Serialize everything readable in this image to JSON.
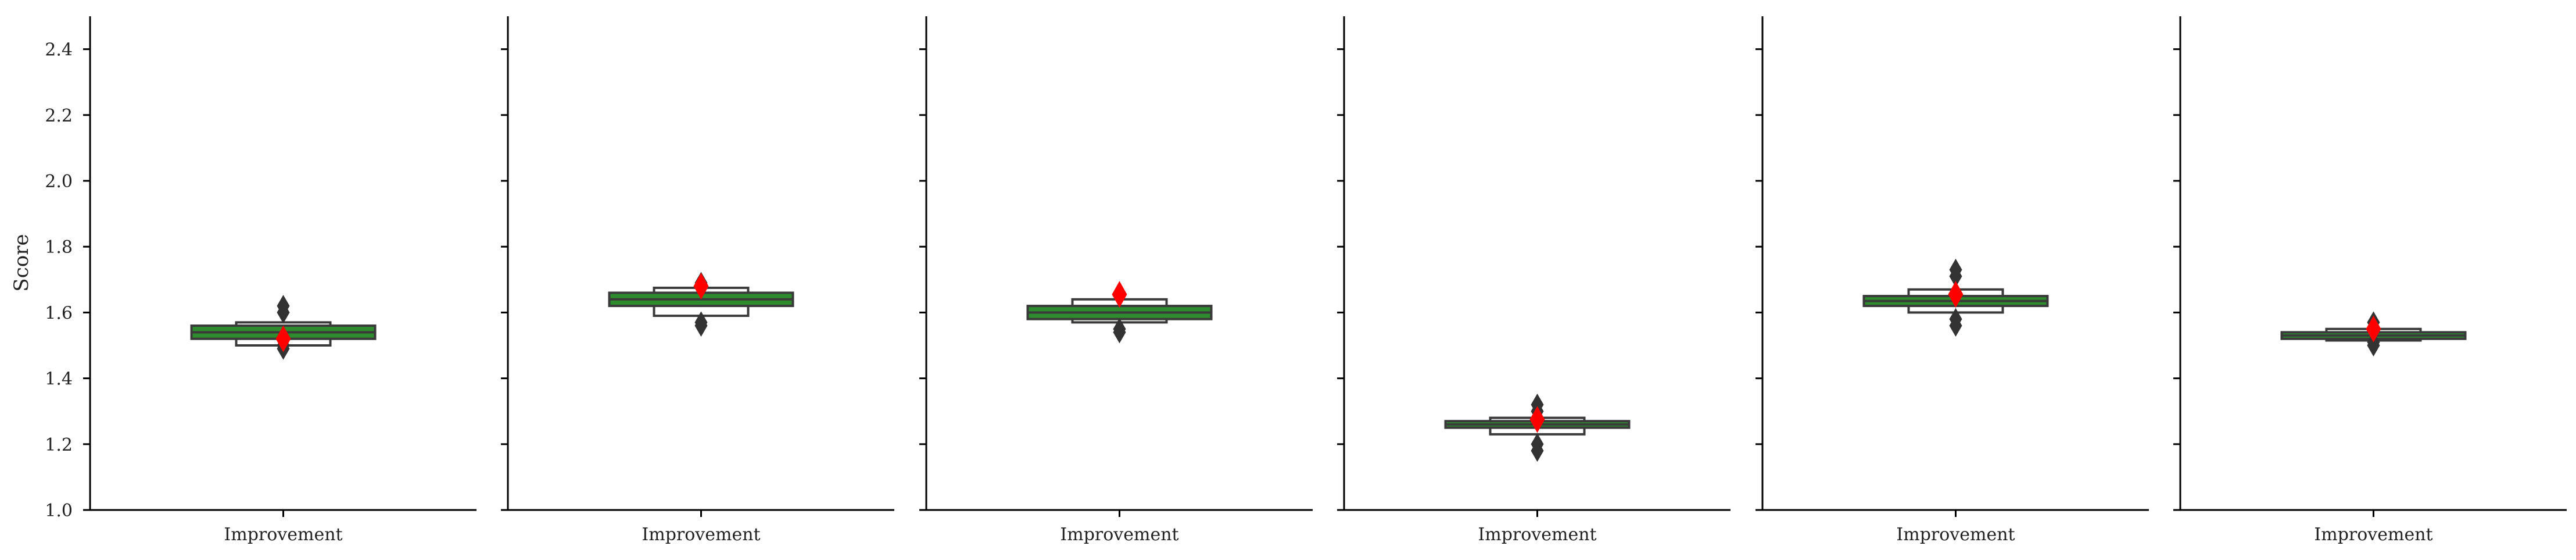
{
  "chart_data": {
    "type": "boxen",
    "ylabel": "Score",
    "ylim": [
      1.0,
      2.5
    ],
    "y_ticks": [
      1.0,
      1.2,
      1.4,
      1.6,
      1.8,
      2.0,
      2.2,
      2.4
    ],
    "y_tick_labels": [
      "1.0",
      "1.2",
      "1.4",
      "1.6",
      "1.8",
      "2.0",
      "2.2",
      "2.4"
    ],
    "grid": false,
    "box_fill_color": "#2e8b2e",
    "outer_box_color": "#ffffff",
    "marker_color": "#ff0000",
    "outlier_color": "#333333",
    "panels": [
      {
        "category": "Improvement",
        "outer_box": [
          1.5,
          1.57
        ],
        "inner_box": [
          1.52,
          1.56
        ],
        "median": 1.54,
        "mean": 1.52,
        "outliers": [
          1.49,
          1.5,
          1.6,
          1.62
        ]
      },
      {
        "category": "Improvement",
        "outer_box": [
          1.59,
          1.675
        ],
        "inner_box": [
          1.62,
          1.66
        ],
        "median": 1.64,
        "mean": 1.68,
        "outliers": [
          1.56,
          1.57,
          1.69
        ]
      },
      {
        "category": "Improvement",
        "outer_box": [
          1.57,
          1.64
        ],
        "inner_box": [
          1.58,
          1.62
        ],
        "median": 1.6,
        "mean": 1.655,
        "outliers": [
          1.54,
          1.55
        ]
      },
      {
        "category": "Improvement",
        "outer_box": [
          1.23,
          1.28
        ],
        "inner_box": [
          1.25,
          1.27
        ],
        "median": 1.26,
        "mean": 1.275,
        "outliers": [
          1.18,
          1.2,
          1.3,
          1.32
        ]
      },
      {
        "category": "Improvement",
        "outer_box": [
          1.6,
          1.67
        ],
        "inner_box": [
          1.62,
          1.65
        ],
        "median": 1.635,
        "mean": 1.655,
        "outliers": [
          1.56,
          1.58,
          1.71,
          1.73
        ]
      },
      {
        "category": "Improvement",
        "outer_box": [
          1.515,
          1.55
        ],
        "inner_box": [
          1.52,
          1.54
        ],
        "median": 1.53,
        "mean": 1.55,
        "outliers": [
          1.5,
          1.51,
          1.57
        ]
      }
    ]
  }
}
